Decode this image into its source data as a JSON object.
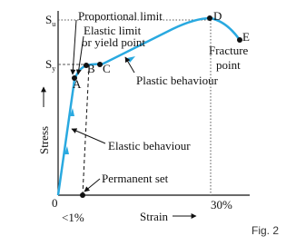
{
  "diagram": {
    "axes": {
      "y_label": "Stress",
      "x_label": "Strain",
      "origin": "0",
      "x_small": "<1%",
      "x_large": "30%"
    },
    "levels": {
      "ultimate": {
        "symbol": "S",
        "subscript": "u"
      },
      "yield": {
        "symbol": "S",
        "subscript": "y"
      }
    },
    "points": [
      "A",
      "B",
      "C",
      "D",
      "E"
    ],
    "annotations": {
      "proportional_limit": "Proportional limit",
      "elastic_limit": [
        "Elastic limit",
        "or yield point"
      ],
      "plastic": "Plastic behaviour",
      "elastic": "Elastic behaviour",
      "permanent_set": "Permanent set",
      "fracture": [
        "Fracture",
        "point"
      ]
    },
    "caption": "Fig. 2"
  }
}
